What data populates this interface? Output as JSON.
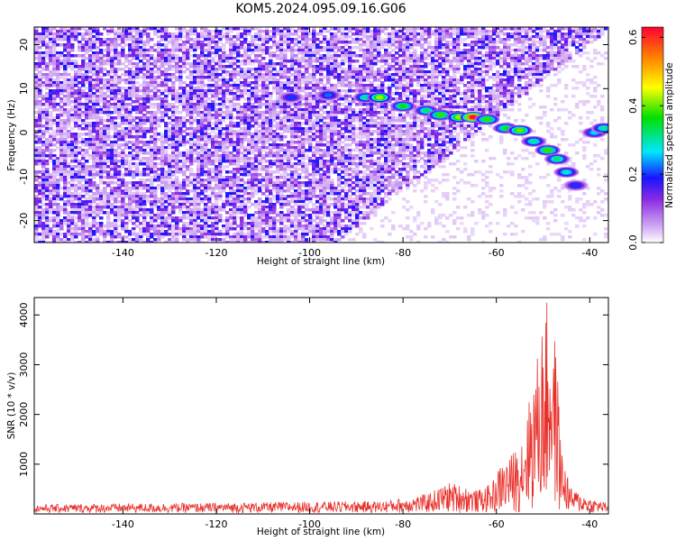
{
  "title": "KOM5.2024.095.09.16.G06",
  "chart_data": [
    {
      "type": "heatmap",
      "xlabel": "Height of straight line (km)",
      "ylabel": "Frequency (Hz)",
      "xlim": [
        -159,
        -36
      ],
      "ylim": [
        -25,
        24
      ],
      "xticks": [
        -140,
        -120,
        -100,
        -80,
        -60,
        -40
      ],
      "yticks": [
        20,
        10,
        0,
        -10,
        -20
      ],
      "colorbar": {
        "label": "Normalized spectral amplitude",
        "range": [
          0.0,
          0.63
        ],
        "ticks": [
          0.0,
          0.2,
          0.4,
          0.6
        ],
        "tick_labels": [
          "0.0",
          "0.2",
          "0.4",
          "0.6"
        ]
      },
      "background_noise_level": 0.14,
      "ridge": {
        "points": [
          {
            "x": -104,
            "y": 8.0,
            "amplitude": 0.2
          },
          {
            "x": -96,
            "y": 8.5,
            "amplitude": 0.22
          },
          {
            "x": -88,
            "y": 8.0,
            "amplitude": 0.3
          },
          {
            "x": -85,
            "y": 8.0,
            "amplitude": 0.42
          },
          {
            "x": -80,
            "y": 6.0,
            "amplitude": 0.36
          },
          {
            "x": -75,
            "y": 5.0,
            "amplitude": 0.32
          },
          {
            "x": -72,
            "y": 4.0,
            "amplitude": 0.38
          },
          {
            "x": -68,
            "y": 3.5,
            "amplitude": 0.42
          },
          {
            "x": -65,
            "y": 3.5,
            "amplitude": 0.62
          },
          {
            "x": -62,
            "y": 3.0,
            "amplitude": 0.38
          },
          {
            "x": -58,
            "y": 1.0,
            "amplitude": 0.35
          },
          {
            "x": -55,
            "y": 0.5,
            "amplitude": 0.4
          },
          {
            "x": -52,
            "y": -2.0,
            "amplitude": 0.3
          },
          {
            "x": -49,
            "y": -4.0,
            "amplitude": 0.38
          },
          {
            "x": -47,
            "y": -6.0,
            "amplitude": 0.32
          },
          {
            "x": -45,
            "y": -9.0,
            "amplitude": 0.28
          },
          {
            "x": -43,
            "y": -12.0,
            "amplitude": 0.2
          },
          {
            "x": -39,
            "y": 0.0,
            "amplitude": 0.26
          },
          {
            "x": -37,
            "y": 1.0,
            "amplitude": 0.3
          }
        ]
      }
    },
    {
      "type": "line",
      "xlabel": "Height of straight line (km)",
      "ylabel": "SNR (10 * v/v)",
      "xlim": [
        -159,
        -36
      ],
      "ylim": [
        0,
        4350
      ],
      "xticks": [
        -140,
        -120,
        -100,
        -80,
        -60,
        -40
      ],
      "yticks": [
        1000,
        2000,
        3000,
        4000
      ],
      "color": "#e8302a",
      "envelope": [
        {
          "x": -159,
          "y": 170
        },
        {
          "x": -140,
          "y": 190
        },
        {
          "x": -120,
          "y": 200
        },
        {
          "x": -100,
          "y": 230
        },
        {
          "x": -85,
          "y": 240
        },
        {
          "x": -80,
          "y": 300
        },
        {
          "x": -75,
          "y": 380
        },
        {
          "x": -72,
          "y": 520
        },
        {
          "x": -70,
          "y": 620
        },
        {
          "x": -67,
          "y": 560
        },
        {
          "x": -64,
          "y": 450
        },
        {
          "x": -61,
          "y": 600
        },
        {
          "x": -59,
          "y": 1000
        },
        {
          "x": -57,
          "y": 1150
        },
        {
          "x": -55,
          "y": 1450
        },
        {
          "x": -53,
          "y": 2300
        },
        {
          "x": -51,
          "y": 3300
        },
        {
          "x": -50,
          "y": 3900
        },
        {
          "x": -49,
          "y": 4350
        },
        {
          "x": -48,
          "y": 4150
        },
        {
          "x": -47,
          "y": 3000
        },
        {
          "x": -46,
          "y": 1250
        },
        {
          "x": -44,
          "y": 500
        },
        {
          "x": -40,
          "y": 300
        },
        {
          "x": -36,
          "y": 200
        }
      ]
    }
  ]
}
